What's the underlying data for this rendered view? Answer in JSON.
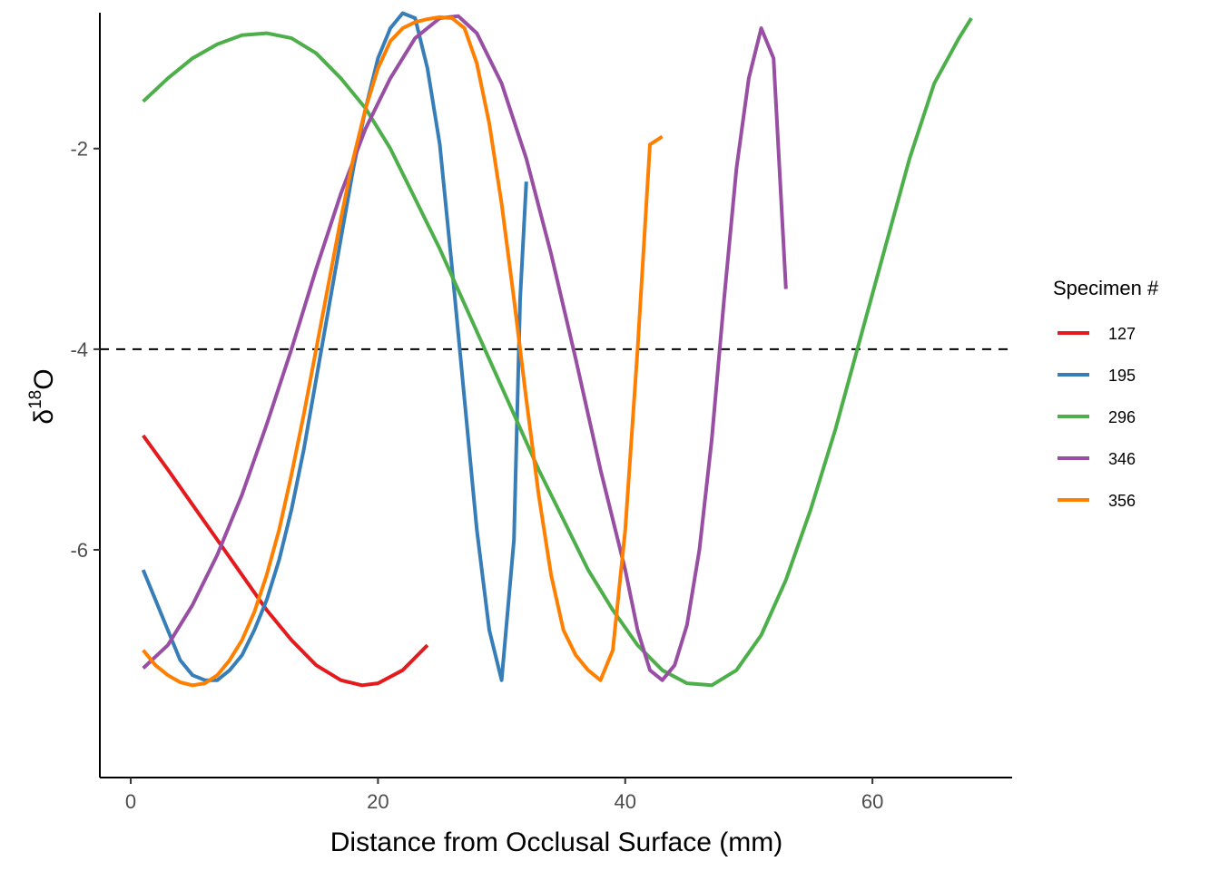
{
  "chart_data": {
    "type": "line",
    "xlabel": "Distance from Occlusal Surface (mm)",
    "ylabel": {
      "delta": "δ",
      "sup": "18",
      "element": "O"
    },
    "xlim": [
      -2.5,
      71.3
    ],
    "ylim": [
      -8.27,
      -0.7
    ],
    "x_ticks": [
      0,
      20,
      40,
      60
    ],
    "x_tick_labels": [
      "0",
      "20",
      "40",
      "60"
    ],
    "y_ticks": [
      -6,
      -4,
      -2
    ],
    "y_tick_labels": [
      "-6",
      "-4",
      "-2"
    ],
    "reference_line": {
      "y": -4,
      "style": "dashed",
      "color": "#000000"
    },
    "grid": false,
    "legend": {
      "title": "Specimen #",
      "position": "right"
    },
    "series": [
      {
        "name": "127",
        "color": "#E41A1C",
        "x": [
          1,
          3,
          5,
          7,
          9,
          11,
          13,
          15,
          17,
          18.7,
          20,
          22,
          24
        ],
        "y": [
          -4.86,
          -5.2,
          -5.55,
          -5.9,
          -6.25,
          -6.6,
          -6.9,
          -7.15,
          -7.3,
          -7.35,
          -7.33,
          -7.2,
          -6.95
        ]
      },
      {
        "name": "195",
        "color": "#377EB8",
        "x": [
          1,
          2,
          3,
          4,
          5,
          6,
          7,
          8,
          9,
          10,
          11,
          12,
          13,
          14,
          15,
          16,
          17,
          18,
          19,
          20,
          21,
          22,
          23,
          24,
          25,
          26,
          27,
          28,
          29,
          30,
          31,
          31.5,
          32
        ],
        "y": [
          -6.2,
          -6.5,
          -6.8,
          -7.1,
          -7.25,
          -7.3,
          -7.3,
          -7.2,
          -7.05,
          -6.8,
          -6.5,
          -6.1,
          -5.6,
          -5.0,
          -4.3,
          -3.6,
          -2.9,
          -2.2,
          -1.6,
          -1.1,
          -0.8,
          -0.65,
          -0.7,
          -1.2,
          -1.96,
          -3.2,
          -4.5,
          -5.8,
          -6.8,
          -7.3,
          -5.9,
          -3.5,
          -2.33
        ]
      },
      {
        "name": "296",
        "color": "#4DAF4A",
        "x": [
          1,
          3,
          5,
          7,
          9,
          11,
          13,
          15,
          17,
          19,
          21,
          23,
          25,
          27,
          29,
          31,
          33,
          35,
          37,
          39,
          41,
          43,
          45,
          47,
          49,
          51,
          53,
          55,
          57,
          59,
          61,
          63,
          65,
          67,
          68
        ],
        "y": [
          -1.53,
          -1.3,
          -1.1,
          -0.96,
          -0.87,
          -0.85,
          -0.9,
          -1.05,
          -1.3,
          -1.6,
          -2.0,
          -2.5,
          -3.0,
          -3.55,
          -4.1,
          -4.65,
          -5.2,
          -5.7,
          -6.2,
          -6.6,
          -6.95,
          -7.2,
          -7.33,
          -7.35,
          -7.2,
          -6.85,
          -6.3,
          -5.6,
          -4.8,
          -3.9,
          -3.0,
          -2.1,
          -1.35,
          -0.9,
          -0.7
        ]
      },
      {
        "name": "346",
        "color": "#984EA3",
        "x": [
          1,
          3,
          5,
          7,
          9,
          11,
          13,
          15,
          17,
          19,
          21,
          23,
          25,
          26.5,
          28,
          30,
          32,
          34,
          36,
          38,
          40,
          41,
          42,
          43,
          44,
          45,
          46,
          47,
          48,
          49,
          50,
          51,
          52,
          53
        ],
        "y": [
          -7.18,
          -6.95,
          -6.55,
          -6.05,
          -5.45,
          -4.75,
          -4.0,
          -3.2,
          -2.45,
          -1.8,
          -1.3,
          -0.9,
          -0.7,
          -0.68,
          -0.85,
          -1.35,
          -2.1,
          -3.05,
          -4.1,
          -5.2,
          -6.2,
          -6.8,
          -7.2,
          -7.3,
          -7.15,
          -6.75,
          -6.0,
          -4.9,
          -3.5,
          -2.2,
          -1.3,
          -0.8,
          -1.1,
          -3.4
        ]
      },
      {
        "name": "356",
        "color": "#FF7F00",
        "x": [
          1,
          2,
          3,
          4,
          5,
          6,
          7,
          8,
          9,
          10,
          11,
          12,
          13,
          14,
          15,
          16,
          17,
          18,
          19,
          20,
          21,
          22,
          23,
          24,
          25,
          26,
          27,
          28,
          29,
          30,
          31,
          32,
          33,
          34,
          35,
          36,
          37,
          38,
          39,
          40,
          41,
          42,
          43
        ],
        "y": [
          -7.0,
          -7.15,
          -7.25,
          -7.32,
          -7.35,
          -7.33,
          -7.25,
          -7.1,
          -6.9,
          -6.62,
          -6.25,
          -5.8,
          -5.25,
          -4.65,
          -4.0,
          -3.35,
          -2.7,
          -2.1,
          -1.6,
          -1.2,
          -0.93,
          -0.8,
          -0.74,
          -0.71,
          -0.69,
          -0.7,
          -0.8,
          -1.15,
          -1.75,
          -2.55,
          -3.5,
          -4.5,
          -5.45,
          -6.25,
          -6.8,
          -7.05,
          -7.2,
          -7.3,
          -7.0,
          -5.8,
          -4.0,
          -1.96,
          -1.88
        ]
      }
    ]
  }
}
